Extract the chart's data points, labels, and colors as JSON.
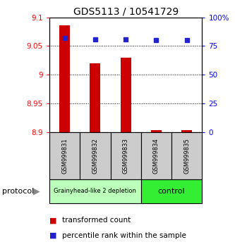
{
  "title": "GDS5113 / 10541729",
  "samples": [
    "GSM999831",
    "GSM999832",
    "GSM999833",
    "GSM999834",
    "GSM999835"
  ],
  "bar_values": [
    9.086,
    9.02,
    9.03,
    8.903,
    8.903
  ],
  "percentile_values": [
    82,
    81,
    81,
    80,
    80
  ],
  "bar_bottom": 8.9,
  "ylim_left": [
    8.9,
    9.1
  ],
  "ylim_right": [
    0,
    100
  ],
  "yticks_left": [
    8.9,
    8.95,
    9.0,
    9.05,
    9.1
  ],
  "yticks_right": [
    0,
    25,
    50,
    75,
    100
  ],
  "ytick_labels_left": [
    "8.9",
    "8.95",
    "9",
    "9.05",
    "9.1"
  ],
  "ytick_labels_right": [
    "0",
    "25",
    "50",
    "75",
    "100%"
  ],
  "bar_color": "#cc0000",
  "point_color": "#2222cc",
  "group1_label": "Grainyhead-like 2 depletion",
  "group2_label": "control",
  "group1_indices": [
    0,
    1,
    2
  ],
  "group2_indices": [
    3,
    4
  ],
  "group1_bg": "#bbffbb",
  "group2_bg": "#33ee33",
  "sample_bg": "#cccccc",
  "legend_bar_label": "transformed count",
  "legend_point_label": "percentile rank within the sample",
  "protocol_label": "protocol"
}
